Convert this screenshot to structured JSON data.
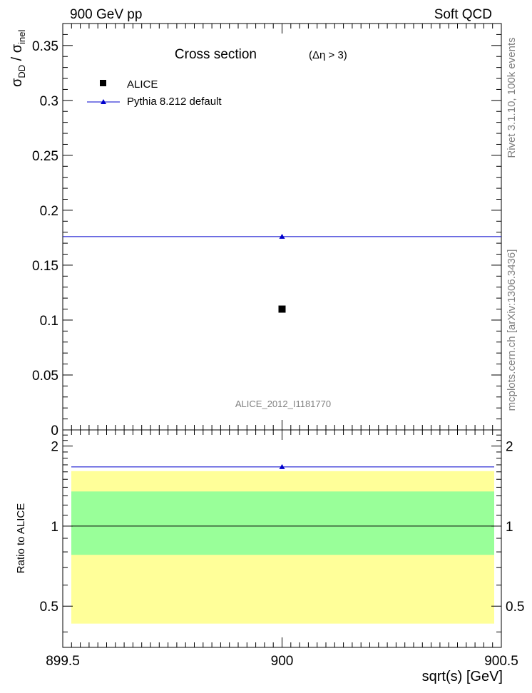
{
  "header": {
    "left_label": "900 GeV pp",
    "right_label": "Soft QCD"
  },
  "side_labels": {
    "rivet": "Rivet 3.1.10,  100k events",
    "mcplots": "mcplots.cern.ch [arXiv:1306.3436]"
  },
  "chart_data": [
    {
      "type": "scatter",
      "panel": "main",
      "title": "Cross section",
      "title_suffix": "(Δη > 3)",
      "ylabel": "σ_DD / σ_inel",
      "watermark": "ALICE_2012_I1181770",
      "xlim": [
        899.5,
        900.5
      ],
      "ylim": [
        0,
        0.37
      ],
      "y_ticks": [
        {
          "value": 0.35,
          "label": "0.35"
        },
        {
          "value": 0.3,
          "label": "0.3"
        },
        {
          "value": 0.25,
          "label": "0.25"
        },
        {
          "value": 0.2,
          "label": "0.2"
        },
        {
          "value": 0.15,
          "label": "0.15"
        },
        {
          "value": 0.1,
          "label": "0.1"
        },
        {
          "value": 0.05,
          "label": "0.05"
        },
        {
          "value": 0,
          "label": "0"
        }
      ],
      "legend": {
        "placement": "top-left"
      },
      "series": [
        {
          "name": "ALICE",
          "marker": "square",
          "color": "#000000",
          "points": [
            {
              "x": 900,
              "y": 0.11
            }
          ]
        },
        {
          "name": "Pythia 8.212 default",
          "marker": "triangle",
          "color": "#0000cc",
          "line": {
            "x": [
              899.5,
              900.5
            ],
            "y": 0.176
          },
          "points": [
            {
              "x": 900,
              "y": 0.176
            }
          ]
        }
      ]
    },
    {
      "type": "line",
      "panel": "ratio",
      "ylabel": "Ratio to ALICE",
      "xlabel": "sqrt(s) [GeV]",
      "xlim": [
        899.5,
        900.5
      ],
      "ylim": [
        0.35,
        2.3
      ],
      "x_ticks": [
        {
          "value": 899.5,
          "label": "899.5"
        },
        {
          "value": 900,
          "label": "900"
        },
        {
          "value": 900.5,
          "label": "900.5"
        }
      ],
      "y_ticks": [
        {
          "value": 2,
          "label": "2"
        },
        {
          "value": 1,
          "label": "1"
        },
        {
          "value": 0.5,
          "label": "0.5"
        }
      ],
      "bands": [
        {
          "name": "outer",
          "low": 0.43,
          "high": 1.61,
          "color": "#ffff99"
        },
        {
          "name": "inner",
          "low": 0.78,
          "high": 1.35,
          "color": "#99ff99"
        }
      ],
      "reference_line": 1,
      "series": [
        {
          "name": "Pythia 8.212 default",
          "color": "#0000cc",
          "line_y": 1.67,
          "points": [
            {
              "x": 900,
              "y": 1.67
            }
          ]
        }
      ]
    }
  ]
}
